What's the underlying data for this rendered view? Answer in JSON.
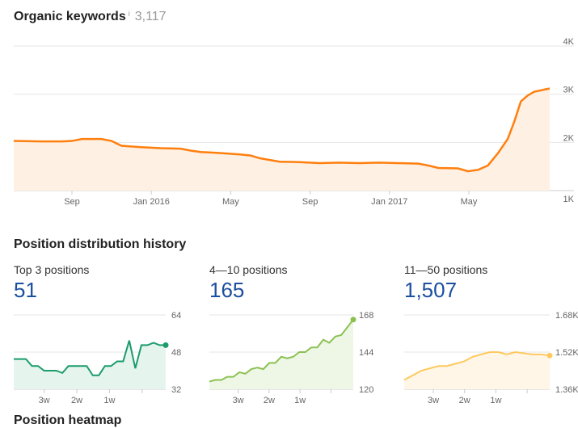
{
  "organic": {
    "title": "Organic keywords",
    "info": "i",
    "count": "3,117",
    "color": "#ff7f0e",
    "chart_data": {
      "type": "area",
      "yticks": [
        "4K",
        "3K",
        "2K",
        "1K"
      ],
      "ylim": [
        1000,
        4000
      ],
      "xticks": [
        "Sep",
        "Jan 2016",
        "May",
        "Sep",
        "Jan 2017",
        "May"
      ],
      "x": [
        "2015-06",
        "2015-07",
        "2015-08",
        "2015-09",
        "2015-09",
        "2015-10",
        "2015-11",
        "2015-11",
        "2015-12",
        "2016-01",
        "2016-02",
        "2016-03",
        "2016-03",
        "2016-04",
        "2016-05",
        "2016-06",
        "2016-06",
        "2016-07",
        "2016-08",
        "2016-09",
        "2016-10",
        "2016-11",
        "2016-12",
        "2017-01",
        "2017-02",
        "2017-03",
        "2017-03",
        "2017-04",
        "2017-05",
        "2017-05",
        "2017-06",
        "2017-06",
        "2017-07",
        "2017-07",
        "2017-07",
        "2017-08",
        "2017-08",
        "2017-08"
      ],
      "values": [
        2030,
        2020,
        2020,
        2030,
        2070,
        2070,
        2030,
        1930,
        1900,
        1880,
        1870,
        1830,
        1800,
        1780,
        1750,
        1730,
        1670,
        1600,
        1590,
        1570,
        1580,
        1570,
        1580,
        1570,
        1560,
        1520,
        1470,
        1460,
        1400,
        1430,
        1520,
        1770,
        2070,
        2430,
        2850,
        2970,
        3050,
        3120
      ]
    }
  },
  "distribution": {
    "title": "Position distribution history",
    "heatmap_title": "Position heatmap",
    "panels": [
      {
        "label": "Top 3 positions",
        "value": "51",
        "color": "#1a9c6b",
        "fill": "#e5f5ee",
        "yticks": [
          "64",
          "48",
          "32"
        ],
        "ylim": [
          32,
          64
        ],
        "xticks": [
          "3w",
          "2w",
          "1w",
          ""
        ],
        "chart_data": {
          "type": "area",
          "values": [
            45,
            45,
            45,
            42,
            42,
            40,
            40,
            40,
            39,
            42,
            42,
            42,
            42,
            38,
            38,
            42,
            42,
            44,
            44,
            53,
            41,
            51,
            51,
            52,
            51,
            51
          ]
        }
      },
      {
        "label": "4—10 positions",
        "value": "165",
        "color": "#8cc152",
        "fill": "#eef7e6",
        "yticks": [
          "168",
          "144",
          "120"
        ],
        "ylim": [
          120,
          168
        ],
        "xticks": [
          "3w",
          "2w",
          "1w",
          ""
        ],
        "chart_data": {
          "type": "area",
          "values": [
            125,
            126,
            126,
            128,
            128,
            131,
            130,
            133,
            134,
            133,
            137,
            137,
            141,
            140,
            141,
            144,
            144,
            147,
            147,
            152,
            150,
            154,
            155,
            160,
            165
          ]
        }
      },
      {
        "label": "11—50 positions",
        "value": "1,507",
        "color": "#ffc95e",
        "fill": "#fff6e8",
        "yticks": [
          "1.68K",
          "1.52K",
          "1.36K"
        ],
        "ylim": [
          1360,
          1680
        ],
        "xticks": [
          "3w",
          "2w",
          "1w",
          ""
        ],
        "chart_data": {
          "type": "area",
          "values": [
            1400,
            1420,
            1440,
            1450,
            1460,
            1460,
            1470,
            1480,
            1500,
            1510,
            1520,
            1520,
            1510,
            1520,
            1515,
            1510,
            1510,
            1505
          ]
        }
      }
    ]
  }
}
